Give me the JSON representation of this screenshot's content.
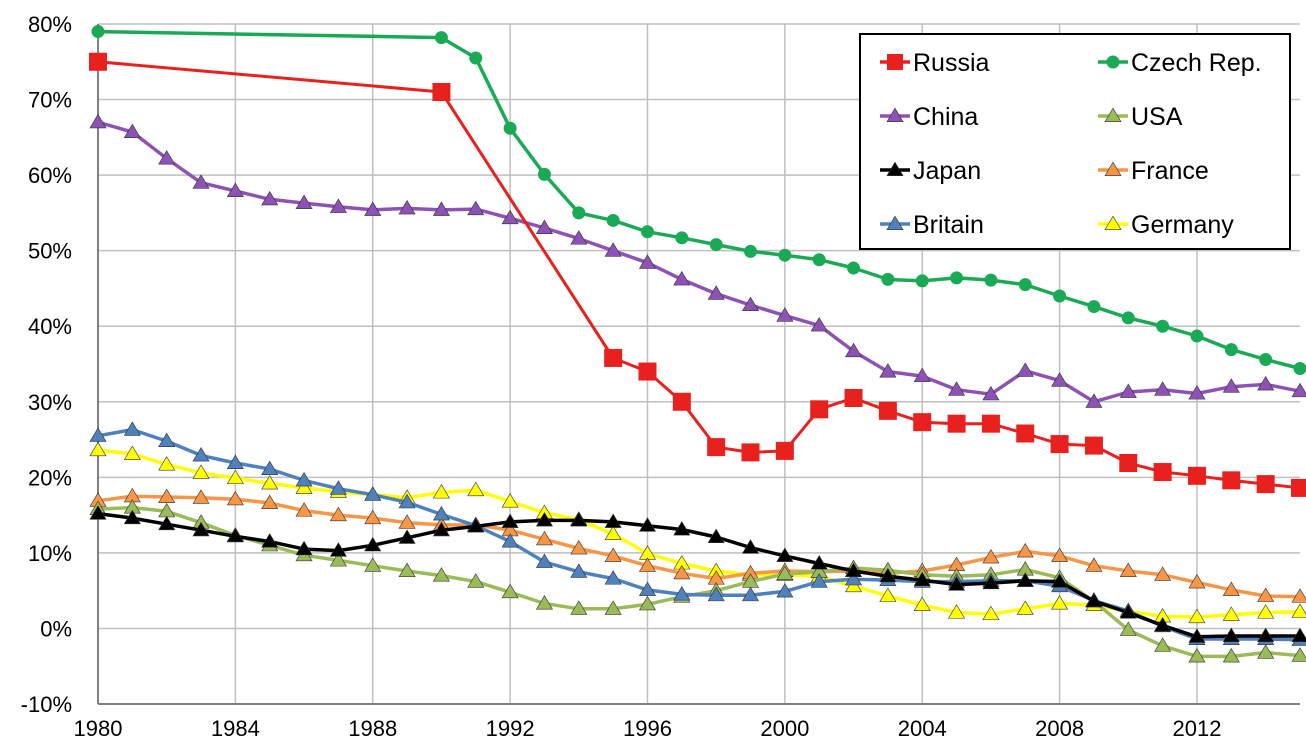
{
  "chart_data": {
    "type": "line",
    "title": "",
    "xlabel": "",
    "ylabel": "",
    "xlim": [
      1980,
      2015
    ],
    "ylim": [
      -10,
      80
    ],
    "grid": true,
    "legend_position": "top-right",
    "x_ticks": [
      1980,
      1984,
      1988,
      1992,
      1996,
      2000,
      2004,
      2008,
      2012
    ],
    "x_tick_labels": [
      "1980",
      "1984",
      "1988",
      "1992",
      "1996",
      "2000",
      "2004",
      "2008",
      "2012"
    ],
    "y_ticks": [
      -10,
      0,
      10,
      20,
      30,
      40,
      50,
      60,
      70,
      80
    ],
    "y_tick_labels": [
      "-10%",
      "0%",
      "10%",
      "20%",
      "30%",
      "40%",
      "50%",
      "60%",
      "70%",
      "80%"
    ],
    "series": [
      {
        "name": "Russia",
        "color": "#e8201e",
        "marker": "square",
        "points": [
          [
            1980,
            75
          ],
          [
            1990,
            71
          ],
          [
            1995,
            35.8
          ],
          [
            1996,
            34
          ],
          [
            1997,
            30
          ],
          [
            1998,
            24
          ],
          [
            1999,
            23.3
          ],
          [
            2000,
            23.5
          ],
          [
            2001,
            29
          ],
          [
            2002,
            30.5
          ],
          [
            2003,
            28.8
          ],
          [
            2004,
            27.3
          ],
          [
            2005,
            27.1
          ],
          [
            2006,
            27.1
          ],
          [
            2007,
            25.8
          ],
          [
            2008,
            24.4
          ],
          [
            2009,
            24.2
          ],
          [
            2010,
            21.9
          ],
          [
            2011,
            20.7
          ],
          [
            2012,
            20.2
          ],
          [
            2013,
            19.6
          ],
          [
            2014,
            19.1
          ],
          [
            2015,
            18.6
          ]
        ]
      },
      {
        "name": "Czech Rep.",
        "color": "#1aaa55",
        "marker": "circle",
        "points": [
          [
            1980,
            79
          ],
          [
            1990,
            78.2
          ],
          [
            1991,
            75.5
          ],
          [
            1992,
            66.2
          ],
          [
            1993,
            60.1
          ],
          [
            1994,
            55
          ],
          [
            1995,
            54
          ],
          [
            1996,
            52.5
          ],
          [
            1997,
            51.7
          ],
          [
            1998,
            50.8
          ],
          [
            1999,
            49.9
          ],
          [
            2000,
            49.4
          ],
          [
            2001,
            48.8
          ],
          [
            2002,
            47.7
          ],
          [
            2003,
            46.2
          ],
          [
            2004,
            46
          ],
          [
            2005,
            46.4
          ],
          [
            2006,
            46.1
          ],
          [
            2007,
            45.5
          ],
          [
            2008,
            44
          ],
          [
            2009,
            42.6
          ],
          [
            2010,
            41.1
          ],
          [
            2011,
            40
          ],
          [
            2012,
            38.7
          ],
          [
            2013,
            36.9
          ],
          [
            2014,
            35.6
          ],
          [
            2015,
            34.4
          ]
        ]
      },
      {
        "name": "China",
        "color": "#8e52b6",
        "marker": "triangle",
        "points": [
          [
            1980,
            67
          ],
          [
            1981,
            65.7
          ],
          [
            1982,
            62.2
          ],
          [
            1983,
            59
          ],
          [
            1984,
            57.9
          ],
          [
            1985,
            56.8
          ],
          [
            1986,
            56.3
          ],
          [
            1987,
            55.8
          ],
          [
            1988,
            55.4
          ],
          [
            1989,
            55.6
          ],
          [
            1990,
            55.4
          ],
          [
            1991,
            55.5
          ],
          [
            1992,
            54.3
          ],
          [
            1993,
            53
          ],
          [
            1994,
            51.6
          ],
          [
            1995,
            50
          ],
          [
            1996,
            48.4
          ],
          [
            1997,
            46.2
          ],
          [
            1998,
            44.3
          ],
          [
            1999,
            42.8
          ],
          [
            2000,
            41.4
          ],
          [
            2001,
            40.1
          ],
          [
            2002,
            36.7
          ],
          [
            2003,
            34
          ],
          [
            2004,
            33.4
          ],
          [
            2005,
            31.6
          ],
          [
            2006,
            31
          ],
          [
            2007,
            34.1
          ],
          [
            2008,
            32.8
          ],
          [
            2009,
            30
          ],
          [
            2010,
            31.3
          ],
          [
            2011,
            31.6
          ],
          [
            2012,
            31.1
          ],
          [
            2013,
            32
          ],
          [
            2014,
            32.3
          ],
          [
            2015,
            31.4
          ]
        ]
      },
      {
        "name": "USA",
        "color": "#9bbb59",
        "marker": "triangle",
        "points": [
          [
            1980,
            15.8
          ],
          [
            1981,
            16
          ],
          [
            1982,
            15.5
          ],
          [
            1983,
            14
          ],
          [
            1984,
            12.3
          ],
          [
            1985,
            11
          ],
          [
            1986,
            9.7
          ],
          [
            1987,
            9
          ],
          [
            1988,
            8.3
          ],
          [
            1989,
            7.6
          ],
          [
            1990,
            7
          ],
          [
            1991,
            6.2
          ],
          [
            1992,
            4.8
          ],
          [
            1993,
            3.3
          ],
          [
            1994,
            2.6
          ],
          [
            1995,
            2.6
          ],
          [
            1996,
            3.2
          ],
          [
            1997,
            4.2
          ],
          [
            1998,
            5
          ],
          [
            1999,
            6.2
          ],
          [
            2000,
            7.2
          ],
          [
            2001,
            7.5
          ],
          [
            2002,
            8
          ],
          [
            2003,
            7.7
          ],
          [
            2004,
            7.1
          ],
          [
            2005,
            6.9
          ],
          [
            2006,
            7.1
          ],
          [
            2007,
            7.8
          ],
          [
            2008,
            6.7
          ],
          [
            2009,
            3.6
          ],
          [
            2010,
            -0.2
          ],
          [
            2011,
            -2.3
          ],
          [
            2012,
            -3.7
          ],
          [
            2013,
            -3.7
          ],
          [
            2014,
            -3.2
          ],
          [
            2015,
            -3.6
          ]
        ]
      },
      {
        "name": "Japan",
        "color": "#000000",
        "marker": "triangle",
        "points": [
          [
            1980,
            15.2
          ],
          [
            1981,
            14.6
          ],
          [
            1982,
            13.8
          ],
          [
            1983,
            13
          ],
          [
            1984,
            12.2
          ],
          [
            1985,
            11.5
          ],
          [
            1986,
            10.5
          ],
          [
            1987,
            10.3
          ],
          [
            1988,
            11
          ],
          [
            1989,
            12
          ],
          [
            1990,
            13
          ],
          [
            1991,
            13.5
          ],
          [
            1992,
            14.1
          ],
          [
            1993,
            14.3
          ],
          [
            1994,
            14.3
          ],
          [
            1995,
            14.1
          ],
          [
            1996,
            13.6
          ],
          [
            1997,
            13.1
          ],
          [
            1998,
            12.1
          ],
          [
            1999,
            10.7
          ],
          [
            2000,
            9.6
          ],
          [
            2001,
            8.6
          ],
          [
            2002,
            7.6
          ],
          [
            2003,
            6.9
          ],
          [
            2004,
            6.4
          ],
          [
            2005,
            5.8
          ],
          [
            2006,
            6
          ],
          [
            2007,
            6.3
          ],
          [
            2008,
            6.2
          ],
          [
            2009,
            3.6
          ],
          [
            2010,
            2.1
          ],
          [
            2011,
            0.4
          ],
          [
            2012,
            -1.1
          ],
          [
            2013,
            -1
          ],
          [
            2014,
            -1
          ],
          [
            2015,
            -1
          ]
        ]
      },
      {
        "name": "France",
        "color": "#f79646",
        "marker": "triangle",
        "points": [
          [
            1980,
            16.9
          ],
          [
            1981,
            17.5
          ],
          [
            1982,
            17.4
          ],
          [
            1983,
            17.3
          ],
          [
            1984,
            17.1
          ],
          [
            1985,
            16.6
          ],
          [
            1986,
            15.6
          ],
          [
            1987,
            15
          ],
          [
            1988,
            14.6
          ],
          [
            1989,
            14
          ],
          [
            1990,
            13.7
          ],
          [
            1991,
            13.7
          ],
          [
            1992,
            13
          ],
          [
            1993,
            11.8
          ],
          [
            1994,
            10.6
          ],
          [
            1995,
            9.6
          ],
          [
            1996,
            8.3
          ],
          [
            1997,
            7.3
          ],
          [
            1998,
            6.6
          ],
          [
            1999,
            7.3
          ],
          [
            2000,
            7.6
          ],
          [
            2001,
            7.5
          ],
          [
            2002,
            7.6
          ],
          [
            2003,
            7.3
          ],
          [
            2004,
            7.6
          ],
          [
            2005,
            8.4
          ],
          [
            2006,
            9.4
          ],
          [
            2007,
            10.2
          ],
          [
            2008,
            9.6
          ],
          [
            2009,
            8.3
          ],
          [
            2010,
            7.6
          ],
          [
            2011,
            7.1
          ],
          [
            2012,
            6.1
          ],
          [
            2013,
            5.1
          ],
          [
            2014,
            4.3
          ],
          [
            2015,
            4.2
          ]
        ]
      },
      {
        "name": "Britain",
        "color": "#4f81bd",
        "marker": "triangle",
        "points": [
          [
            1980,
            25.5
          ],
          [
            1981,
            26.3
          ],
          [
            1982,
            24.8
          ],
          [
            1983,
            22.9
          ],
          [
            1984,
            21.9
          ],
          [
            1985,
            21.1
          ],
          [
            1986,
            19.6
          ],
          [
            1987,
            18.5
          ],
          [
            1988,
            17.7
          ],
          [
            1989,
            16.7
          ],
          [
            1990,
            15.1
          ],
          [
            1991,
            13.6
          ],
          [
            1992,
            11.5
          ],
          [
            1993,
            8.8
          ],
          [
            1994,
            7.5
          ],
          [
            1995,
            6.6
          ],
          [
            1996,
            5.1
          ],
          [
            1997,
            4.5
          ],
          [
            1998,
            4.4
          ],
          [
            1999,
            4.4
          ],
          [
            2000,
            4.9
          ],
          [
            2001,
            6.2
          ],
          [
            2002,
            6.5
          ],
          [
            2003,
            6.4
          ],
          [
            2004,
            6.2
          ],
          [
            2005,
            6.2
          ],
          [
            2006,
            6.3
          ],
          [
            2007,
            6.3
          ],
          [
            2008,
            5.6
          ],
          [
            2009,
            3.7
          ],
          [
            2010,
            2.3
          ],
          [
            2011,
            0.3
          ],
          [
            2012,
            -1.4
          ],
          [
            2013,
            -1.4
          ],
          [
            2014,
            -1.4
          ],
          [
            2015,
            -1.5
          ]
        ]
      },
      {
        "name": "Germany",
        "color": "#ffff00",
        "marker": "triangle",
        "points": [
          [
            1980,
            23.6
          ],
          [
            1981,
            23.1
          ],
          [
            1982,
            21.7
          ],
          [
            1983,
            20.6
          ],
          [
            1984,
            19.9
          ],
          [
            1985,
            19.2
          ],
          [
            1986,
            18.6
          ],
          [
            1987,
            18.1
          ],
          [
            1988,
            17.7
          ],
          [
            1989,
            17.3
          ],
          [
            1990,
            18
          ],
          [
            1991,
            18.3
          ],
          [
            1992,
            16.8
          ],
          [
            1993,
            15.3
          ],
          [
            1994,
            14.4
          ],
          [
            1995,
            12.5
          ],
          [
            1996,
            9.9
          ],
          [
            1997,
            8.6
          ],
          [
            1998,
            7.6
          ],
          [
            1999,
            7.1
          ],
          [
            2000,
            7.1
          ],
          [
            2001,
            6.9
          ],
          [
            2002,
            5.6
          ],
          [
            2003,
            4.3
          ],
          [
            2004,
            3.1
          ],
          [
            2005,
            2.1
          ],
          [
            2006,
            1.9
          ],
          [
            2007,
            2.6
          ],
          [
            2008,
            3.3
          ],
          [
            2009,
            3.1
          ],
          [
            2010,
            2.3
          ],
          [
            2011,
            1.6
          ],
          [
            2012,
            1.5
          ],
          [
            2013,
            1.8
          ],
          [
            2014,
            2.1
          ],
          [
            2015,
            2.2
          ]
        ]
      }
    ]
  }
}
